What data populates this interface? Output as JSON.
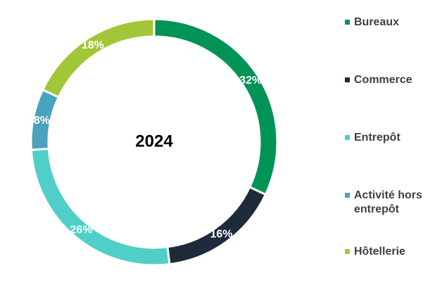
{
  "chart_data": {
    "type": "pie",
    "title": "",
    "center_label": "2024",
    "slices": [
      {
        "label": "Bureaux",
        "value": 32,
        "value_label": "32%",
        "color": "#009356"
      },
      {
        "label": "Commerce",
        "value": 16,
        "value_label": "16%",
        "color": "#1f2a3b"
      },
      {
        "label": "Entrepôt",
        "value": 26,
        "value_label": "26%",
        "color": "#4fcfc8"
      },
      {
        "label": "Activité hors entrepôt",
        "value": 8,
        "value_label": "8%",
        "color": "#4aa3bd"
      },
      {
        "label": "Hôtellerie",
        "value": 18,
        "value_label": "18%",
        "color": "#a3c639"
      }
    ],
    "legend_position": "right"
  }
}
